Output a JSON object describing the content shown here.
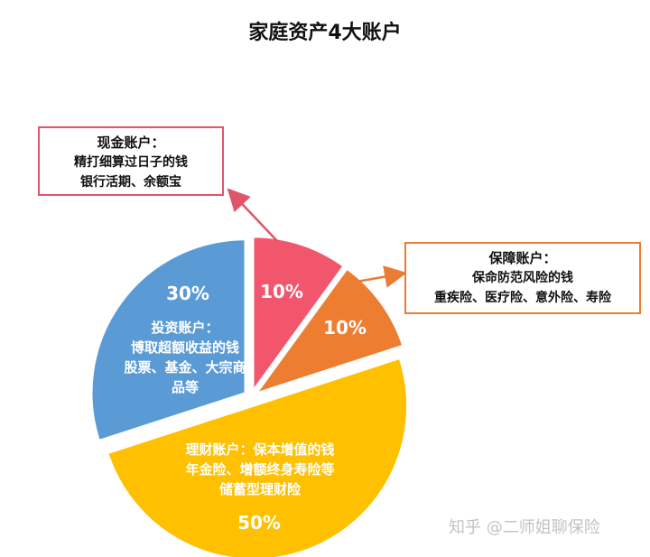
{
  "title": "家庭资产4大账户",
  "chart_data": {
    "type": "pie",
    "title": "家庭资产4大账户",
    "slices": [
      {
        "label": "现金账户",
        "value": 10,
        "value_label": "10%",
        "color": "#f2566c"
      },
      {
        "label": "保障账户",
        "value": 10,
        "value_label": "10%",
        "color": "#ed7d31"
      },
      {
        "label": "理财账户",
        "value": 50,
        "value_label": "50%",
        "color": "#ffc000"
      },
      {
        "label": "投资账户",
        "value": 30,
        "value_label": "30%",
        "color": "#5b9bd5"
      }
    ]
  },
  "callouts": {
    "cash": {
      "heading": "现金账户：",
      "line1": "精打细算过日子的钱",
      "line2": "银行活期、余额宝"
    },
    "protection": {
      "heading": "保障账户：",
      "line1": "保命防范风险的钱",
      "line2": "重疾险、医疗险、意外险、寿险"
    }
  },
  "slice_texts": {
    "investment": {
      "line1": "投资账户：",
      "line2": "博取超额收益的钱",
      "line3": "股票、基金、大宗商",
      "line4": "品等"
    },
    "wealth": {
      "line1": "理财账户：保本增值的钱",
      "line2": "年金险、增额终身寿险等",
      "line3": "储蓄型理财险"
    }
  },
  "watermark": "知乎 @二师姐聊保险",
  "colors": {
    "cash": "#f2566c",
    "protection": "#ed7d31",
    "wealth": "#ffc000",
    "investment": "#5b9bd5",
    "cash_border": "#e0556a",
    "protection_border": "#ec7b35"
  }
}
